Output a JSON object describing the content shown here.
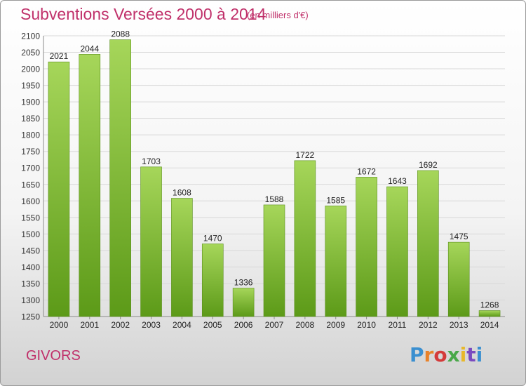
{
  "header": {
    "title": "Subventions Versées 2000 à 2014",
    "unit": "(en milliers d'€)"
  },
  "footer": {
    "city": "GIVORS",
    "logo": "Proxiti",
    "logo_colors": [
      "#3a8fd0",
      "#e8822a",
      "#d43a3a",
      "#4aa84a",
      "#e8b82a",
      "#7a4ac0",
      "#3a8fd0"
    ]
  },
  "chart_data": {
    "type": "bar",
    "title": "Subventions Versées 2000 à 2014",
    "subtitle": "(en milliers d'€)",
    "categories": [
      "2000",
      "2001",
      "2002",
      "2003",
      "2004",
      "2005",
      "2006",
      "2007",
      "2008",
      "2009",
      "2010",
      "2011",
      "2012",
      "2013",
      "2014"
    ],
    "values": [
      2021,
      2044,
      2088,
      1703,
      1608,
      1470,
      1336,
      1588,
      1722,
      1585,
      1672,
      1643,
      1692,
      1475,
      1268
    ],
    "ylim": [
      1250,
      2100
    ],
    "yticks": [
      1250,
      1300,
      1350,
      1400,
      1450,
      1500,
      1550,
      1600,
      1650,
      1700,
      1750,
      1800,
      1850,
      1900,
      1950,
      2000,
      2050,
      2100
    ],
    "grid": true,
    "bar_color_top": "#a6d65a",
    "bar_color_bottom": "#5c9a18"
  }
}
